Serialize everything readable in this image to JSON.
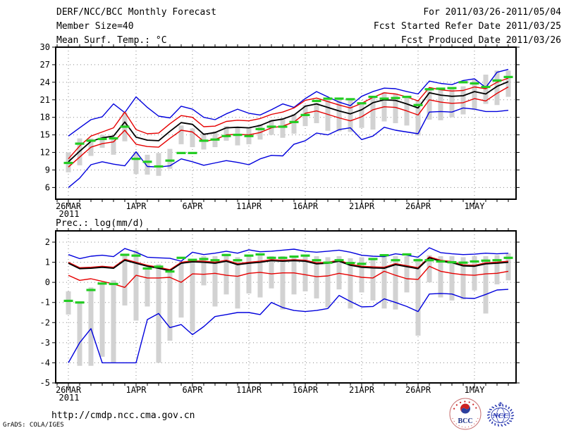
{
  "header": {
    "title": "DERF/NCC/BCC Monthly Forecast",
    "member_size": "Member Size=40",
    "temp_panel_title": "Mean Surf. Temp.: °C",
    "for_range": "For 2011/03/26-2011/05/04",
    "fcst_started": "Fcst Started Refer Date 2011/03/25",
    "fcst_produced": "Fcst Produced Date 2011/03/26"
  },
  "footer": {
    "url": "http://cmdp.ncc.cma.gov.cn",
    "credit": "GrADS: COLA/IGES",
    "bcc_logo_label": "BCC",
    "ncc_logo_label": "NCC"
  },
  "colors": {
    "blue": "#0000dd",
    "red": "#e60000",
    "black": "#000000",
    "green": "#22cc22",
    "gray_bar": "#d2d2d2",
    "grid": "#888888",
    "frame": "#000000",
    "bcc_navy": "#1a2f86",
    "bcc_red": "#cc2222",
    "ncc_blue": "#2939b0"
  },
  "chart_data": [
    {
      "type": "line",
      "title": "Mean Surf. Temp.: °C",
      "ylabel": "",
      "xlabel": "",
      "grid": true,
      "legend": "none",
      "xlim": [
        -1.125,
        39.6875
      ],
      "ylim": [
        4,
        30
      ],
      "yticks": [
        6,
        9,
        12,
        15,
        18,
        21,
        24,
        27,
        30
      ],
      "xticks": [
        {
          "day": 0,
          "label": "26MAR",
          "sublabel": "2011"
        },
        {
          "day": 6,
          "label": "1APR"
        },
        {
          "day": 11,
          "label": "6APR"
        },
        {
          "day": 16,
          "label": "11APR"
        },
        {
          "day": 21,
          "label": "16APR"
        },
        {
          "day": 26,
          "label": "21APR"
        },
        {
          "day": 31,
          "label": "26APR"
        },
        {
          "day": 36,
          "label": "1MAY"
        }
      ],
      "x_start_date": "2011-03-26",
      "x_end_date": "2011-05-04",
      "series": [
        {
          "name": "ensemble-max",
          "color": "blue",
          "values": [
            14.8,
            16.2,
            17.6,
            18.1,
            20.3,
            18.8,
            21.5,
            19.7,
            18.2,
            17.9,
            19.9,
            19.4,
            18.0,
            17.6,
            18.6,
            19.4,
            18.7,
            18.4,
            19.3,
            20.3,
            19.7,
            21.2,
            22.4,
            21.5,
            20.6,
            20.0,
            21.6,
            22.4,
            23.0,
            22.9,
            22.4,
            22.0,
            24.2,
            23.8,
            23.6,
            24.3,
            24.6,
            23.1,
            25.7,
            26.2
          ]
        },
        {
          "name": "ensemble-min",
          "color": "blue",
          "values": [
            6.0,
            7.6,
            9.9,
            10.4,
            10.0,
            9.7,
            12.1,
            9.6,
            9.5,
            9.7,
            10.9,
            10.4,
            9.8,
            10.2,
            10.6,
            10.3,
            9.9,
            10.9,
            11.5,
            11.4,
            13.4,
            14.0,
            15.3,
            15.0,
            15.9,
            16.2,
            14.2,
            14.8,
            16.3,
            15.8,
            15.5,
            15.2,
            18.9,
            19.0,
            18.9,
            19.6,
            19.4,
            19.0,
            19.0,
            19.2
          ]
        },
        {
          "name": "upper-envelope",
          "color": "red",
          "values": [
            10.9,
            13.1,
            14.8,
            15.5,
            16.2,
            18.9,
            15.9,
            15.2,
            15.3,
            16.9,
            18.3,
            18.0,
            16.4,
            16.5,
            17.3,
            17.5,
            17.4,
            17.8,
            18.5,
            18.9,
            19.6,
            20.9,
            21.3,
            20.7,
            20.1,
            19.6,
            20.4,
            21.4,
            22.2,
            22.0,
            21.5,
            20.8,
            23.1,
            22.7,
            22.5,
            22.6,
            23.2,
            22.9,
            24.0,
            24.7
          ]
        },
        {
          "name": "lower-envelope",
          "color": "red",
          "values": [
            9.5,
            11.2,
            12.9,
            13.5,
            13.8,
            15.8,
            13.4,
            13.0,
            12.9,
            14.4,
            15.8,
            15.5,
            13.9,
            14.2,
            15.0,
            15.1,
            15.0,
            15.4,
            16.2,
            16.5,
            17.2,
            18.7,
            19.1,
            18.5,
            17.9,
            17.4,
            18.1,
            19.3,
            19.8,
            19.7,
            19.1,
            18.4,
            21.0,
            20.6,
            20.4,
            20.5,
            21.2,
            20.8,
            22.1,
            23.2
          ]
        },
        {
          "name": "ensemble-mean",
          "color": "black",
          "values": [
            10.4,
            12.2,
            13.9,
            14.5,
            14.8,
            17.2,
            14.6,
            14.1,
            14.0,
            15.6,
            17.1,
            16.8,
            15.1,
            15.4,
            16.2,
            16.3,
            16.2,
            16.6,
            17.4,
            17.7,
            18.4,
            19.9,
            20.3,
            19.7,
            19.1,
            18.6,
            19.3,
            20.5,
            21.0,
            20.9,
            20.3,
            19.6,
            22.2,
            21.8,
            21.6,
            21.7,
            22.4,
            22.0,
            23.3,
            24.1
          ]
        },
        {
          "name": "observation",
          "color": "green",
          "style": "dash-markers",
          "values": [
            10.2,
            13.5,
            14.0,
            14.3,
            14.4,
            16.4,
            10.9,
            10.4,
            9.6,
            10.6,
            11.9,
            11.9,
            14.0,
            14.2,
            14.8,
            15.0,
            14.8,
            16.0,
            16.4,
            16.4,
            17.2,
            18.4,
            20.8,
            21.2,
            21.2,
            21.1,
            20.4,
            21.5,
            21.2,
            21.3,
            21.5,
            20.1,
            22.8,
            22.9,
            23.0,
            24.0,
            23.8,
            23.2,
            24.3,
            24.9
          ]
        }
      ],
      "bars": {
        "name": "member-spread",
        "color": "gray_bar",
        "ranges": [
          [
            8.6,
            12.0
          ],
          [
            9.8,
            14.4
          ],
          [
            11.4,
            14.4
          ],
          [
            12.8,
            15.0
          ],
          [
            11.6,
            14.7
          ],
          [
            13.9,
            18.8
          ],
          [
            8.3,
            12.1
          ],
          [
            8.2,
            11.6
          ],
          [
            8.0,
            11.9
          ],
          [
            9.2,
            12.6
          ],
          [
            13.4,
            16.6
          ],
          [
            12.9,
            16.1
          ],
          [
            12.5,
            15.3
          ],
          [
            12.9,
            15.6
          ],
          [
            14.0,
            16.5
          ],
          [
            13.2,
            16.4
          ],
          [
            13.4,
            16.3
          ],
          [
            14.2,
            16.8
          ],
          [
            15.0,
            17.6
          ],
          [
            14.5,
            17.9
          ],
          [
            15.2,
            18.6
          ],
          [
            16.5,
            20.1
          ],
          [
            17.0,
            20.5
          ],
          [
            15.7,
            21.3
          ],
          [
            15.6,
            21.2
          ],
          [
            15.5,
            21.1
          ],
          [
            16.2,
            20.6
          ],
          [
            15.9,
            21.5
          ],
          [
            17.3,
            22.3
          ],
          [
            17.0,
            22.1
          ],
          [
            16.6,
            21.6
          ],
          [
            14.9,
            20.9
          ],
          [
            17.6,
            22.9
          ],
          [
            17.5,
            23.0
          ],
          [
            18.0,
            23.2
          ],
          [
            18.5,
            23.3
          ],
          [
            19.3,
            24.5
          ],
          [
            20.3,
            25.3
          ],
          [
            20.1,
            26.0
          ],
          [
            21.5,
            26.0
          ]
        ]
      }
    },
    {
      "type": "line",
      "title": "Prec.: log(mm/d)",
      "ylabel": "",
      "xlabel": "",
      "grid": true,
      "legend": "none",
      "xlim": [
        -1.125,
        39.6875
      ],
      "ylim": [
        -5,
        2.56
      ],
      "yticks": [
        2,
        1,
        0,
        -1,
        -2,
        -3,
        -4,
        -5
      ],
      "xticks": [
        {
          "day": 0,
          "label": "26MAR",
          "sublabel": "2011"
        },
        {
          "day": 6,
          "label": "1APR"
        },
        {
          "day": 11,
          "label": "6APR"
        },
        {
          "day": 16,
          "label": "11APR"
        },
        {
          "day": 21,
          "label": "16APR"
        },
        {
          "day": 26,
          "label": "21APR"
        },
        {
          "day": 31,
          "label": "26APR"
        },
        {
          "day": 36,
          "label": "1MAY"
        }
      ],
      "x_start_date": "2011-03-26",
      "x_end_date": "2011-05-04",
      "series": [
        {
          "name": "ensemble-max",
          "color": "blue",
          "values": [
            1.38,
            1.18,
            1.3,
            1.35,
            1.28,
            1.68,
            1.5,
            1.25,
            1.22,
            1.2,
            1.05,
            1.5,
            1.38,
            1.45,
            1.55,
            1.45,
            1.62,
            1.52,
            1.55,
            1.6,
            1.65,
            1.55,
            1.5,
            1.55,
            1.6,
            1.5,
            1.35,
            1.3,
            1.28,
            1.42,
            1.35,
            1.25,
            1.72,
            1.48,
            1.42,
            1.38,
            1.4,
            1.45,
            1.42,
            1.45
          ]
        },
        {
          "name": "ensemble-min",
          "color": "blue",
          "values": [
            -4.0,
            -3.0,
            -2.3,
            -4.0,
            -4.0,
            -4.0,
            -4.0,
            -1.85,
            -1.55,
            -2.25,
            -2.1,
            -2.6,
            -2.2,
            -1.7,
            -1.6,
            -1.5,
            -1.5,
            -1.6,
            -1.0,
            -1.25,
            -1.4,
            -1.45,
            -1.4,
            -1.3,
            -0.65,
            -0.95,
            -1.22,
            -1.2,
            -0.82,
            -1.0,
            -1.2,
            -1.45,
            -0.58,
            -0.55,
            -0.58,
            -0.78,
            -0.8,
            -0.6,
            -0.38,
            -0.35
          ]
        },
        {
          "name": "upper-envelope",
          "color": "red",
          "values": [
            1.0,
            0.73,
            0.75,
            0.8,
            0.75,
            1.15,
            1.0,
            0.85,
            0.75,
            0.63,
            1.0,
            1.07,
            1.05,
            1.0,
            1.1,
            0.93,
            1.0,
            1.05,
            1.13,
            1.1,
            1.13,
            1.1,
            0.97,
            1.0,
            1.1,
            0.9,
            0.8,
            0.77,
            0.75,
            0.93,
            0.83,
            0.73,
            1.27,
            1.1,
            1.03,
            0.87,
            0.85,
            0.97,
            1.0,
            1.05
          ]
        },
        {
          "name": "lower-envelope",
          "color": "red",
          "values": [
            0.35,
            0.1,
            0.18,
            0.05,
            -0.08,
            -0.25,
            0.35,
            0.22,
            0.22,
            0.25,
            0.0,
            0.42,
            0.4,
            0.45,
            0.35,
            0.3,
            0.45,
            0.5,
            0.42,
            0.47,
            0.47,
            0.38,
            0.28,
            0.32,
            0.45,
            0.35,
            0.25,
            0.22,
            0.55,
            0.35,
            0.18,
            0.15,
            0.8,
            0.55,
            0.45,
            0.38,
            0.35,
            0.42,
            0.45,
            0.55
          ]
        },
        {
          "name": "ensemble-mean",
          "color": "black",
          "values": [
            0.95,
            0.68,
            0.7,
            0.75,
            0.7,
            1.1,
            0.95,
            0.8,
            0.7,
            0.58,
            0.95,
            1.02,
            1.0,
            0.95,
            1.05,
            0.88,
            0.95,
            1.0,
            1.08,
            1.05,
            1.08,
            1.05,
            0.92,
            0.95,
            1.05,
            0.85,
            0.75,
            0.72,
            0.7,
            0.88,
            0.78,
            0.68,
            1.22,
            1.05,
            0.98,
            0.82,
            0.8,
            0.92,
            0.95,
            1.0
          ]
        },
        {
          "name": "observation",
          "color": "green",
          "style": "dash-markers",
          "values": [
            -0.92,
            -1.0,
            -0.38,
            -0.06,
            -0.08,
            1.37,
            1.33,
            0.69,
            0.78,
            0.54,
            1.22,
            1.12,
            1.16,
            1.1,
            1.36,
            1.1,
            1.33,
            1.39,
            1.22,
            1.22,
            1.28,
            1.33,
            1.1,
            0.98,
            1.1,
            0.96,
            0.92,
            1.16,
            1.35,
            1.1,
            1.39,
            1.1,
            1.1,
            1.04,
            1.0,
            0.98,
            1.04,
            1.08,
            1.1,
            1.22
          ]
        }
      ],
      "bars": {
        "name": "member-spread",
        "color": "gray_bar",
        "ranges": [
          [
            -1.6,
            -0.45
          ],
          [
            -4.15,
            -0.95
          ],
          [
            -4.15,
            -0.25
          ],
          [
            -3.7,
            0.0
          ],
          [
            -4.0,
            0.1
          ],
          [
            -1.15,
            1.35
          ],
          [
            -1.9,
            1.6
          ],
          [
            -1.2,
            0.75
          ],
          [
            -4.0,
            0.9
          ],
          [
            -2.9,
            0.6
          ],
          [
            -1.75,
            0.95
          ],
          [
            -2.45,
            1.05
          ],
          [
            -0.15,
            1.3
          ],
          [
            -1.2,
            1.3
          ],
          [
            -0.6,
            1.35
          ],
          [
            -1.3,
            1.25
          ],
          [
            -0.55,
            1.3
          ],
          [
            -0.75,
            1.35
          ],
          [
            -0.3,
            1.3
          ],
          [
            -1.35,
            1.3
          ],
          [
            -0.6,
            1.3
          ],
          [
            -0.45,
            1.35
          ],
          [
            -0.8,
            1.3
          ],
          [
            -1.25,
            1.25
          ],
          [
            -0.35,
            1.3
          ],
          [
            -1.3,
            1.2
          ],
          [
            -0.5,
            1.25
          ],
          [
            -0.9,
            1.2
          ],
          [
            -1.3,
            1.35
          ],
          [
            -1.35,
            1.3
          ],
          [
            -0.5,
            1.3
          ],
          [
            -2.65,
            1.2
          ],
          [
            0.0,
            1.35
          ],
          [
            -0.75,
            1.3
          ],
          [
            -0.9,
            1.3
          ],
          [
            -0.85,
            1.25
          ],
          [
            -0.4,
            1.3
          ],
          [
            -1.55,
            1.3
          ],
          [
            -0.1,
            1.35
          ],
          [
            0.1,
            1.45
          ]
        ]
      }
    }
  ]
}
